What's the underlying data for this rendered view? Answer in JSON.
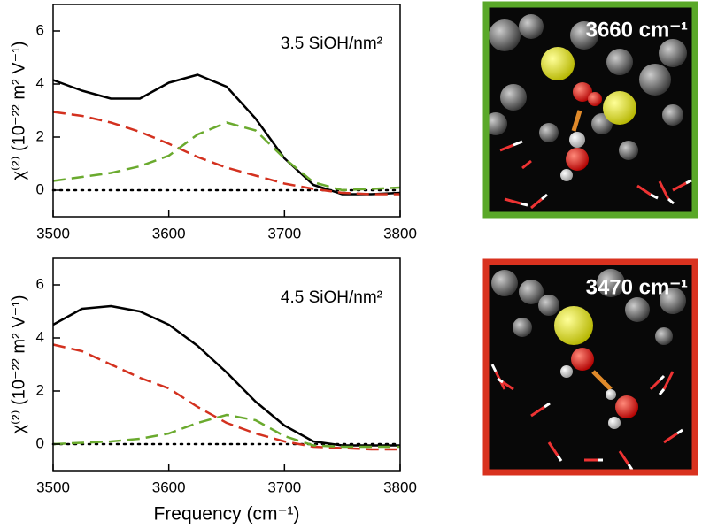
{
  "chart_data": [
    {
      "type": "line",
      "annotation": "3.5 SiOH/nm²",
      "ylabel": "χ⁽²⁾ (10⁻²² m² V⁻¹)",
      "x": [
        3500,
        3525,
        3550,
        3575,
        3600,
        3625,
        3650,
        3675,
        3700,
        3725,
        3750,
        3775,
        3800
      ],
      "series": [
        {
          "color": "#000000",
          "dash": "solid",
          "values": [
            4.15,
            3.75,
            3.45,
            3.45,
            4.05,
            4.35,
            3.9,
            2.7,
            1.2,
            0.2,
            -0.15,
            -0.15,
            -0.1
          ]
        },
        {
          "color": "#d3311f",
          "dash": "dashed",
          "values": [
            2.95,
            2.8,
            2.55,
            2.2,
            1.75,
            1.25,
            0.85,
            0.55,
            0.25,
            0.05,
            -0.1,
            -0.15,
            -0.15
          ]
        },
        {
          "color": "#6aaa2e",
          "dash": "dashed",
          "values": [
            0.35,
            0.5,
            0.65,
            0.9,
            1.3,
            2.1,
            2.55,
            2.25,
            1.2,
            0.3,
            0.0,
            0.05,
            0.1
          ]
        }
      ],
      "xlim": [
        3500,
        3800
      ],
      "xticks": [
        3500,
        3600,
        3700,
        3800
      ],
      "ylim": [
        -1,
        7
      ],
      "yticks": [
        0,
        2,
        4,
        6
      ],
      "zero_line": true
    },
    {
      "type": "line",
      "annotation": "4.5 SiOH/nm²",
      "ylabel": "χ⁽²⁾ (10⁻²² m² V⁻¹)",
      "xlabel": "Frequency (cm⁻¹)",
      "x": [
        3500,
        3525,
        3550,
        3575,
        3600,
        3625,
        3650,
        3675,
        3700,
        3725,
        3750,
        3775,
        3800
      ],
      "series": [
        {
          "color": "#000000",
          "dash": "solid",
          "values": [
            4.5,
            5.1,
            5.2,
            5.0,
            4.5,
            3.7,
            2.7,
            1.6,
            0.7,
            0.1,
            -0.05,
            -0.05,
            -0.05
          ]
        },
        {
          "color": "#d3311f",
          "dash": "dashed",
          "values": [
            3.75,
            3.5,
            3.0,
            2.5,
            2.1,
            1.4,
            0.8,
            0.4,
            0.1,
            -0.1,
            -0.15,
            -0.2,
            -0.2
          ]
        },
        {
          "color": "#6aaa2e",
          "dash": "dashed",
          "values": [
            0.0,
            0.05,
            0.1,
            0.2,
            0.4,
            0.8,
            1.1,
            0.9,
            0.3,
            -0.05,
            -0.1,
            -0.1,
            -0.1
          ]
        }
      ],
      "xlim": [
        3500,
        3800
      ],
      "xticks": [
        3500,
        3600,
        3700,
        3800
      ],
      "ylim": [
        -1,
        7
      ],
      "yticks": [
        0,
        2,
        4,
        6
      ],
      "zero_line": true
    }
  ],
  "panels": [
    {
      "label": "3660 cm⁻¹",
      "border_color": "#5aa829"
    },
    {
      "label": "3470 cm⁻¹",
      "border_color": "#d9321f"
    }
  ]
}
